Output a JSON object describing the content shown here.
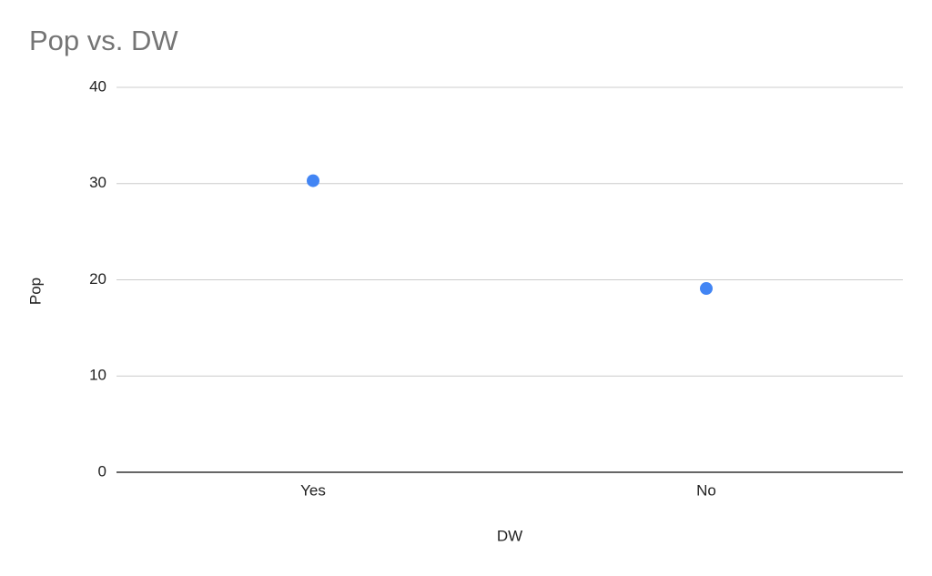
{
  "chart_data": {
    "type": "scatter",
    "title": "Pop vs. DW",
    "x_label": "DW",
    "y_label": "Pop",
    "categories": [
      "Yes",
      "No"
    ],
    "values": [
      30.3,
      19.1
    ],
    "color": "#4285f4",
    "ylim": [
      0,
      40
    ],
    "yticks": [
      0,
      10,
      20,
      30,
      40
    ],
    "grid": true
  }
}
